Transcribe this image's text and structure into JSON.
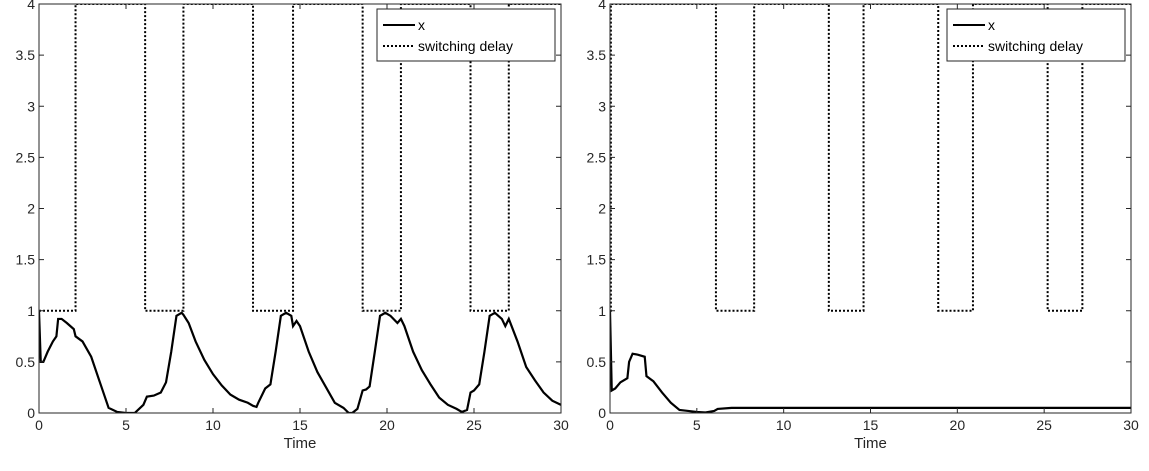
{
  "chart_data": [
    {
      "type": "line",
      "xlabel": "Time",
      "ylabel": "",
      "xlim": [
        0,
        30
      ],
      "ylim": [
        0,
        4
      ],
      "xticks": [
        "0",
        "5",
        "10",
        "15",
        "20",
        "25",
        "30"
      ],
      "yticks": [
        "0",
        "0.5",
        "1",
        "1.5",
        "2",
        "2.5",
        "3",
        "3.5",
        "4"
      ],
      "grid": false,
      "legend_position": "top-right",
      "series": [
        {
          "name": "x",
          "style": "solid",
          "x": [
            0,
            0.1,
            0.25,
            0.5,
            0.8,
            1.0,
            1.1,
            1.3,
            1.6,
            2.0,
            2.1,
            2.5,
            3.0,
            3.5,
            4.0,
            4.5,
            5.0,
            5.5,
            6.0,
            6.2,
            6.6,
            7.0,
            7.3,
            7.6,
            7.9,
            8.2,
            8.3,
            8.6,
            9.0,
            9.5,
            10.0,
            10.5,
            11.0,
            11.5,
            12.0,
            12.3,
            12.5,
            12.6,
            13.0,
            13.3,
            13.6,
            13.9,
            14.2,
            14.5,
            14.6,
            14.8,
            15.0,
            15.5,
            16.0,
            16.5,
            17.0,
            17.5,
            17.8,
            18.0,
            18.3,
            18.6,
            18.8,
            19.0,
            19.3,
            19.6,
            19.9,
            20.2,
            20.6,
            20.8,
            21.0,
            21.5,
            22.0,
            22.5,
            23.0,
            23.5,
            24.0,
            24.3,
            24.6,
            24.8,
            25.0,
            25.3,
            25.6,
            25.9,
            26.2,
            26.6,
            26.8,
            27.0,
            27.5,
            28.0,
            28.5,
            29.0,
            29.5,
            30.0
          ],
          "y": [
            1.0,
            0.5,
            0.5,
            0.6,
            0.7,
            0.75,
            0.92,
            0.92,
            0.88,
            0.82,
            0.75,
            0.7,
            0.55,
            0.3,
            0.05,
            0.01,
            0.0,
            0.0,
            0.08,
            0.16,
            0.17,
            0.2,
            0.3,
            0.6,
            0.95,
            0.98,
            0.96,
            0.88,
            0.7,
            0.52,
            0.38,
            0.27,
            0.18,
            0.13,
            0.1,
            0.07,
            0.06,
            0.1,
            0.24,
            0.28,
            0.6,
            0.95,
            0.98,
            0.95,
            0.85,
            0.9,
            0.85,
            0.6,
            0.4,
            0.25,
            0.1,
            0.05,
            0.0,
            0.0,
            0.04,
            0.22,
            0.23,
            0.26,
            0.6,
            0.95,
            0.98,
            0.95,
            0.88,
            0.92,
            0.85,
            0.6,
            0.42,
            0.28,
            0.15,
            0.08,
            0.04,
            0.01,
            0.03,
            0.2,
            0.22,
            0.28,
            0.6,
            0.95,
            0.98,
            0.92,
            0.85,
            0.92,
            0.7,
            0.45,
            0.32,
            0.2,
            0.12,
            0.08
          ]
        },
        {
          "name": "switching delay",
          "style": "dotted",
          "x": [
            0,
            2.1,
            2.1,
            6.1,
            6.1,
            8.3,
            8.3,
            12.3,
            12.3,
            14.6,
            14.6,
            18.6,
            18.6,
            20.8,
            20.8,
            24.8,
            24.8,
            27.0,
            27.0,
            30
          ],
          "y": [
            1,
            1,
            4,
            4,
            1,
            1,
            4,
            4,
            1,
            1,
            4,
            4,
            1,
            1,
            4,
            4,
            1,
            1,
            4,
            4
          ]
        }
      ]
    },
    {
      "type": "line",
      "xlabel": "Time",
      "ylabel": "",
      "xlim": [
        0,
        30
      ],
      "ylim": [
        0,
        4
      ],
      "xticks": [
        "0",
        "5",
        "10",
        "15",
        "20",
        "25",
        "30"
      ],
      "yticks": [
        "0",
        "0.5",
        "1",
        "1.5",
        "2",
        "2.5",
        "3",
        "3.5",
        "4"
      ],
      "grid": false,
      "legend_position": "top-right",
      "series": [
        {
          "name": "x",
          "style": "solid",
          "x": [
            0,
            0.1,
            0.3,
            0.6,
            1.0,
            1.1,
            1.3,
            1.6,
            2.0,
            2.1,
            2.5,
            3.0,
            3.5,
            4.0,
            4.5,
            5.0,
            5.5,
            6.0,
            6.2,
            7.0,
            10.0,
            15.0,
            20.0,
            25.0,
            30.0
          ],
          "y": [
            1.0,
            0.22,
            0.24,
            0.3,
            0.34,
            0.5,
            0.58,
            0.57,
            0.55,
            0.36,
            0.31,
            0.2,
            0.1,
            0.03,
            0.02,
            0.01,
            0.005,
            0.02,
            0.04,
            0.05,
            0.05,
            0.05,
            0.05,
            0.05,
            0.05
          ]
        },
        {
          "name": "switching delay",
          "style": "dotted",
          "x": [
            0,
            0.05,
            0.05,
            6.1,
            6.1,
            8.3,
            8.3,
            12.6,
            12.6,
            14.6,
            14.6,
            18.9,
            18.9,
            20.9,
            20.9,
            25.2,
            25.2,
            27.2,
            27.2,
            30
          ],
          "y": [
            1,
            1,
            4,
            4,
            1,
            1,
            4,
            4,
            1,
            1,
            4,
            4,
            1,
            1,
            4,
            4,
            1,
            1,
            4,
            4
          ]
        }
      ]
    }
  ]
}
